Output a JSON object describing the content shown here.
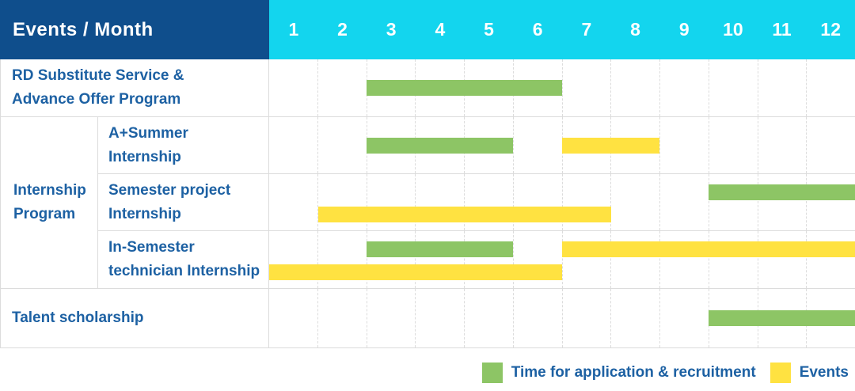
{
  "colors": {
    "header_bg": "#0f4e8c",
    "months_bg": "#13d5ee",
    "label_text": "#1d61a3",
    "grid": "#dcdcdc",
    "application": "#8dc565",
    "events": "#ffe241"
  },
  "chart_data": {
    "type": "bar",
    "variant": "gantt",
    "title": "Events / Month",
    "x": {
      "unit": "month",
      "range": [
        1,
        12
      ],
      "ticks": [
        "1",
        "2",
        "3",
        "4",
        "5",
        "6",
        "7",
        "8",
        "9",
        "10",
        "11",
        "12"
      ]
    },
    "grid": "dashed-vertical-month-separators",
    "legend_position": "bottom-right",
    "legend": [
      {
        "key": "application",
        "label": "Time for application & recruitment",
        "color": "#8dc565"
      },
      {
        "key": "events",
        "label": "Events",
        "color": "#ffe241"
      }
    ],
    "groups": [
      {
        "label": "Internship Program",
        "label_lines": [
          "Internship",
          "Program"
        ],
        "row_span": [
          1,
          3
        ]
      }
    ],
    "rows": [
      {
        "group": "",
        "label": "RD Substitute Service & Advance Offer Program",
        "label_lines": [
          "RD Substitute Service &",
          "Advance Offer Program"
        ],
        "lines": [
          [
            {
              "type": "application",
              "start": 3,
              "end": 6
            }
          ]
        ]
      },
      {
        "group": "Internship Program",
        "label": "A+Summer Internship",
        "label_lines": [
          "A+Summer",
          "Internship"
        ],
        "lines": [
          [
            {
              "type": "application",
              "start": 3,
              "end": 5
            },
            {
              "type": "events",
              "start": 7,
              "end": 8
            }
          ]
        ]
      },
      {
        "group": "Internship Program",
        "label": "Semester project Internship",
        "label_lines": [
          "Semester project",
          "Internship"
        ],
        "lines": [
          [
            {
              "type": "application",
              "start": 10,
              "end": 12
            }
          ],
          [
            {
              "type": "events",
              "start": 2,
              "end": 7
            }
          ]
        ]
      },
      {
        "group": "Internship Program",
        "label": "In-Semester technician Internship",
        "label_lines": [
          "In-Semester",
          "technician Internship"
        ],
        "lines": [
          [
            {
              "type": "application",
              "start": 3,
              "end": 5
            },
            {
              "type": "events",
              "start": 7,
              "end": 12
            }
          ],
          [
            {
              "type": "events",
              "start": 1,
              "end": 6
            }
          ]
        ]
      },
      {
        "group": "",
        "label": "Talent scholarship",
        "label_lines": [
          "Talent scholarship"
        ],
        "lines": [
          [
            {
              "type": "application",
              "start": 10,
              "end": 12
            }
          ]
        ]
      }
    ]
  }
}
